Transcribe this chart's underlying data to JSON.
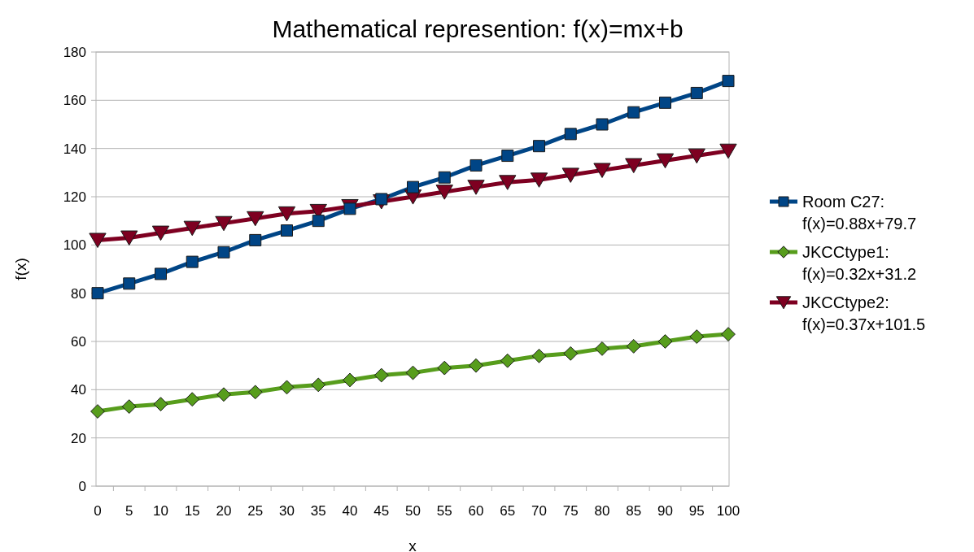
{
  "chart_data": {
    "type": "line",
    "title": "Mathematical represention: f(x)=mx+b",
    "xlabel": "x",
    "ylabel": "f(x)",
    "categories": [
      "0",
      "5",
      "10",
      "15",
      "20",
      "25",
      "30",
      "35",
      "40",
      "45",
      "50",
      "55",
      "60",
      "65",
      "70",
      "75",
      "80",
      "85",
      "90",
      "95",
      "100"
    ],
    "series": [
      {
        "name": "Room C27: f(x)=0.88x+79.7",
        "color": "#004586",
        "marker": "square",
        "values": [
          80,
          84,
          88,
          93,
          97,
          102,
          106,
          110,
          115,
          119,
          124,
          128,
          133,
          137,
          141,
          146,
          150,
          155,
          159,
          163,
          168
        ]
      },
      {
        "name": "JKCCtype1: f(x)=0.32x+31.2",
        "color": "#579d1c",
        "marker": "diamond",
        "values": [
          31,
          33,
          34,
          36,
          38,
          39,
          41,
          42,
          44,
          46,
          47,
          49,
          50,
          52,
          54,
          55,
          57,
          58,
          60,
          62,
          63
        ]
      },
      {
        "name": "JKCCtype2: f(x)=0.37x+101.5",
        "color": "#7e0021",
        "marker": "triangle",
        "values": [
          102,
          103,
          105,
          107,
          109,
          111,
          113,
          114,
          116,
          118,
          120,
          122,
          124,
          126,
          127,
          129,
          131,
          133,
          135,
          137,
          139
        ]
      }
    ],
    "ylim": [
      0,
      180
    ],
    "yticks": [
      0,
      20,
      40,
      60,
      80,
      100,
      120,
      140,
      160,
      180
    ],
    "grid": "y",
    "legend": "right",
    "line_style": "solid"
  }
}
